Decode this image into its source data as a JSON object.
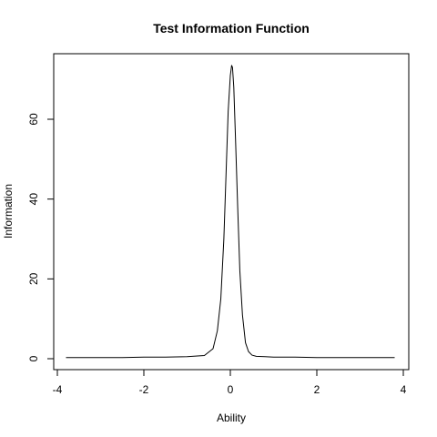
{
  "chart_data": {
    "type": "line",
    "title": "Test Information Function",
    "xlabel": "Ability",
    "ylabel": "Information",
    "xlim": [
      -4,
      4
    ],
    "ylim": [
      0,
      75
    ],
    "x_ticks": [
      -4,
      -2,
      0,
      2,
      4
    ],
    "x_tick_labels": [
      "-4",
      "-2",
      "0",
      "2",
      "4"
    ],
    "y_ticks": [
      0,
      20,
      40,
      60
    ],
    "y_tick_labels": [
      "0",
      "20",
      "40",
      "60"
    ],
    "grid": false,
    "legend": "none",
    "line_color": "#000000",
    "series": [
      {
        "x": [
          -3.8,
          -3.0,
          -2.5,
          -2.0,
          -1.5,
          -1.0,
          -0.6,
          -0.4,
          -0.3,
          -0.22,
          -0.15,
          -0.1,
          -0.05,
          0.0,
          0.03,
          0.05,
          0.08,
          0.12,
          0.17,
          0.22,
          0.28,
          0.35,
          0.42,
          0.5,
          0.6,
          0.8,
          1.0,
          1.5,
          2.0,
          3.0,
          3.8
        ],
        "y": [
          0.3,
          0.3,
          0.3,
          0.4,
          0.4,
          0.5,
          0.8,
          2.5,
          7,
          15,
          30,
          46,
          62,
          71,
          73.5,
          73,
          68,
          55,
          38,
          22,
          11,
          4,
          1.8,
          0.9,
          0.6,
          0.5,
          0.4,
          0.4,
          0.3,
          0.3,
          0.3
        ]
      }
    ]
  }
}
